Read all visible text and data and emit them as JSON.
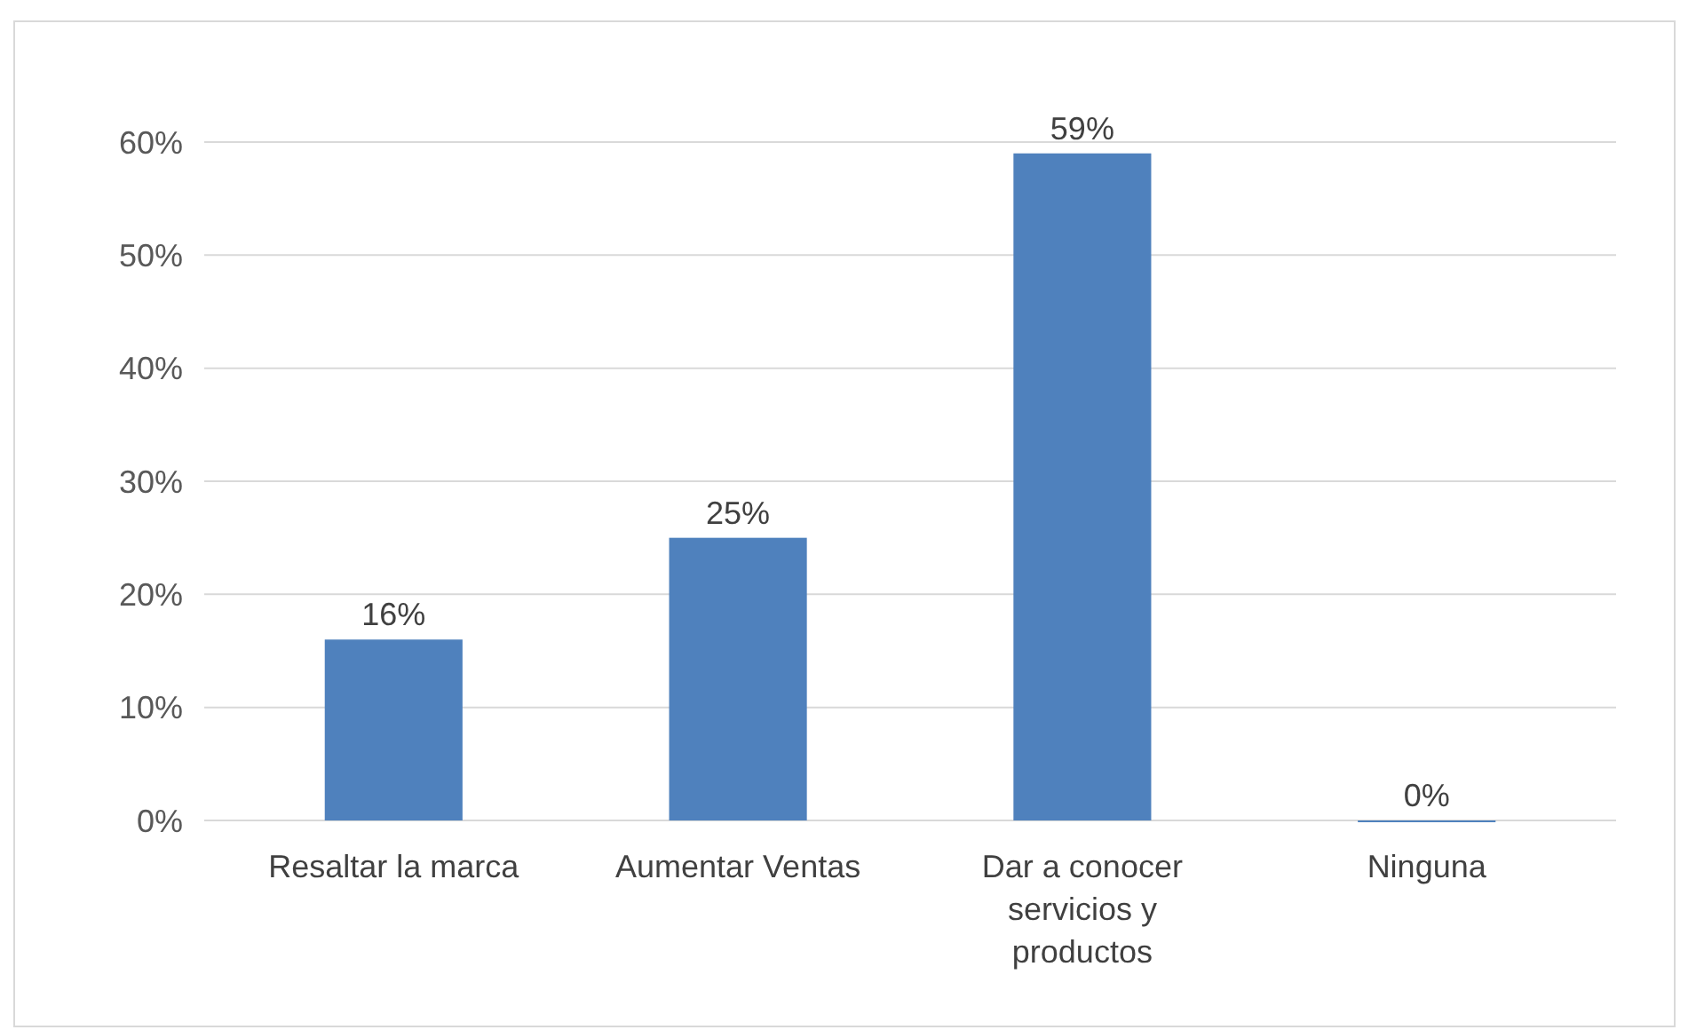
{
  "chart_data": {
    "type": "bar",
    "categories": [
      "Resaltar la marca",
      "Aumentar Ventas",
      "Dar a conocer servicios y productos",
      "Ninguna"
    ],
    "values": [
      16,
      25,
      59,
      0
    ],
    "color": "#4f81bd",
    "value_labels": [
      "16%",
      "25%",
      "59%",
      "0%"
    ],
    "ylim": [
      0,
      60
    ],
    "yticks": [
      {
        "value": 0,
        "label": "0%"
      },
      {
        "value": 10,
        "label": "10%"
      },
      {
        "value": 20,
        "label": "20%"
      },
      {
        "value": 30,
        "label": "30%"
      },
      {
        "value": 40,
        "label": "40%"
      },
      {
        "value": 50,
        "label": "50%"
      },
      {
        "value": 60,
        "label": "60%"
      }
    ],
    "grid": "y"
  }
}
